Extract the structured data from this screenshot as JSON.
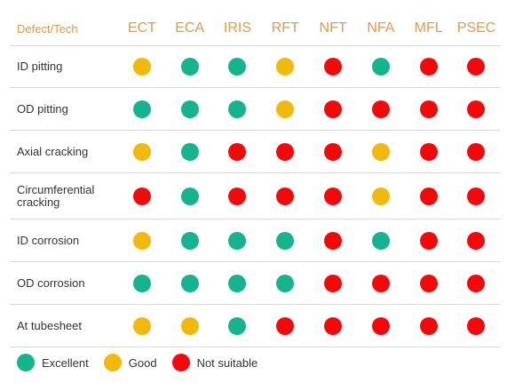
{
  "header": {
    "corner": "Defect/Tech",
    "techs": [
      "ECT",
      "ECA",
      "IRIS",
      "RFT",
      "NFT",
      "NFA",
      "MFL",
      "PSEC"
    ]
  },
  "ratings": {
    "excellent": {
      "label": "Excellent",
      "color": "#15b48c"
    },
    "good": {
      "label": "Good",
      "color": "#f2b90a"
    },
    "not_suitable": {
      "label": "Not suitable",
      "color": "#f5080a"
    }
  },
  "rows": [
    {
      "label": "ID pitting",
      "values": [
        "good",
        "excellent",
        "excellent",
        "good",
        "not_suitable",
        "excellent",
        "not_suitable",
        "not_suitable"
      ]
    },
    {
      "label": "OD pitting",
      "values": [
        "excellent",
        "excellent",
        "excellent",
        "good",
        "not_suitable",
        "not_suitable",
        "not_suitable",
        "not_suitable"
      ]
    },
    {
      "label": "Axial cracking",
      "values": [
        "good",
        "excellent",
        "not_suitable",
        "not_suitable",
        "not_suitable",
        "good",
        "not_suitable",
        "not_suitable"
      ]
    },
    {
      "label": "Circumferential cracking",
      "values": [
        "not_suitable",
        "excellent",
        "not_suitable",
        "not_suitable",
        "not_suitable",
        "good",
        "not_suitable",
        "not_suitable"
      ]
    },
    {
      "label": "ID corrosion",
      "values": [
        "good",
        "excellent",
        "excellent",
        "excellent",
        "not_suitable",
        "excellent",
        "not_suitable",
        "not_suitable"
      ]
    },
    {
      "label": "OD corrosion",
      "values": [
        "excellent",
        "excellent",
        "excellent",
        "excellent",
        "not_suitable",
        "not_suitable",
        "not_suitable",
        "not_suitable"
      ]
    },
    {
      "label": "At tubesheet",
      "values": [
        "good",
        "good",
        "excellent",
        "not_suitable",
        "not_suitable",
        "not_suitable",
        "not_suitable",
        "not_suitable"
      ]
    }
  ],
  "legend": [
    "excellent",
    "good",
    "not_suitable"
  ]
}
